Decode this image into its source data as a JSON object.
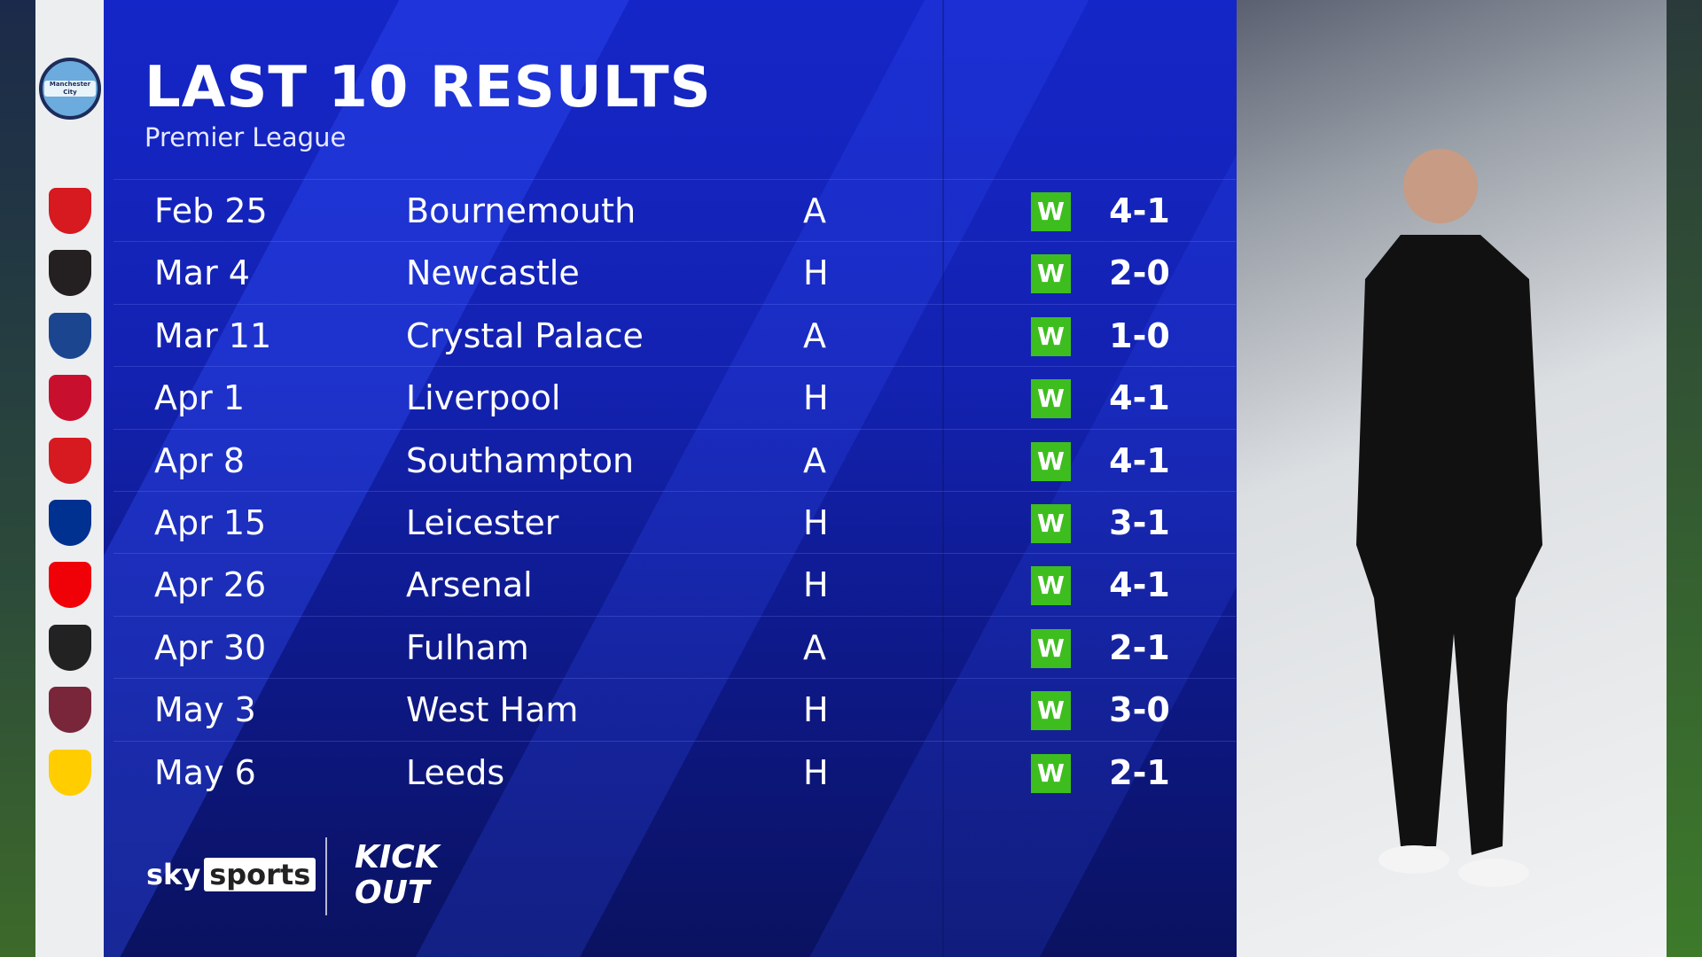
{
  "header": {
    "title": "LAST 10 RESULTS",
    "subtitle": "Premier League"
  },
  "team": "Manchester City",
  "results": [
    {
      "date": "Feb 25",
      "opponent": "Bournemouth",
      "venue": "A",
      "result": "W",
      "score": "4-1",
      "crest_color": "#d71920"
    },
    {
      "date": "Mar 4",
      "opponent": "Newcastle",
      "venue": "H",
      "result": "W",
      "score": "2-0",
      "crest_color": "#241f20"
    },
    {
      "date": "Mar 11",
      "opponent": "Crystal Palace",
      "venue": "A",
      "result": "W",
      "score": "1-0",
      "crest_color": "#1b458f"
    },
    {
      "date": "Apr 1",
      "opponent": "Liverpool",
      "venue": "H",
      "result": "W",
      "score": "4-1",
      "crest_color": "#c8102e"
    },
    {
      "date": "Apr 8",
      "opponent": "Southampton",
      "venue": "A",
      "result": "W",
      "score": "4-1",
      "crest_color": "#d71920"
    },
    {
      "date": "Apr 15",
      "opponent": "Leicester",
      "venue": "H",
      "result": "W",
      "score": "3-1",
      "crest_color": "#003090"
    },
    {
      "date": "Apr 26",
      "opponent": "Arsenal",
      "venue": "H",
      "result": "W",
      "score": "4-1",
      "crest_color": "#ef0107"
    },
    {
      "date": "Apr 30",
      "opponent": "Fulham",
      "venue": "A",
      "result": "W",
      "score": "2-1",
      "crest_color": "#222222"
    },
    {
      "date": "May 3",
      "opponent": "West Ham",
      "venue": "H",
      "result": "W",
      "score": "3-0",
      "crest_color": "#7a263a"
    },
    {
      "date": "May 6",
      "opponent": "Leeds",
      "venue": "H",
      "result": "W",
      "score": "2-1",
      "crest_color": "#ffcd00"
    }
  ],
  "colors": {
    "win": "#3dbe1e",
    "panel": "#1526c8"
  },
  "footer": {
    "sky_a": "sky",
    "sky_b": "sports",
    "kickout_a": "KICK",
    "kickout_b": "OUT"
  }
}
